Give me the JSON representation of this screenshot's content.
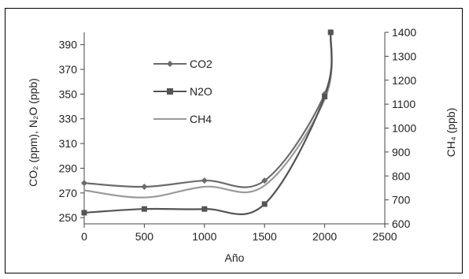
{
  "chart_data": {
    "type": "line",
    "title": "",
    "xlabel": "Año",
    "ylabel_left": "CO₂ (ppm), N₂O (ppb)",
    "ylabel_right": "CH₄ (ppb)",
    "x_ticks": [
      "0",
      "500",
      "1000",
      "1500",
      "2000",
      "2500"
    ],
    "y_left_ticks": [
      "250",
      "270",
      "290",
      "310",
      "330",
      "350",
      "370",
      "390"
    ],
    "y_right_ticks": [
      "600",
      "700",
      "800",
      "900",
      "1000",
      "1100",
      "1200",
      "1300",
      "1400"
    ],
    "xlim": [
      0,
      2500
    ],
    "ylim_left": [
      245,
      400
    ],
    "ylim_right": [
      600,
      1400
    ],
    "grid": false,
    "legend_position": "upper-left",
    "series": [
      {
        "name": "CO2",
        "axis": "left",
        "marker": "diamond",
        "color": "#6b6b6b",
        "x": [
          0,
          500,
          1000,
          1500,
          2000,
          2050
        ],
        "y": [
          278,
          275,
          280,
          280,
          350,
          400
        ]
      },
      {
        "name": "N2O",
        "axis": "left",
        "marker": "square",
        "color": "#545454",
        "x": [
          0,
          500,
          1000,
          1500,
          2000,
          2050
        ],
        "y": [
          254,
          257,
          257,
          261,
          348,
          400
        ]
      },
      {
        "name": "CH4",
        "axis": "right",
        "marker": "none",
        "color": "#9a9a9a",
        "x": [
          0,
          500,
          1000,
          1500,
          2000,
          2050
        ],
        "y": [
          740,
          710,
          755,
          760,
          1120,
          1390
        ]
      }
    ]
  }
}
